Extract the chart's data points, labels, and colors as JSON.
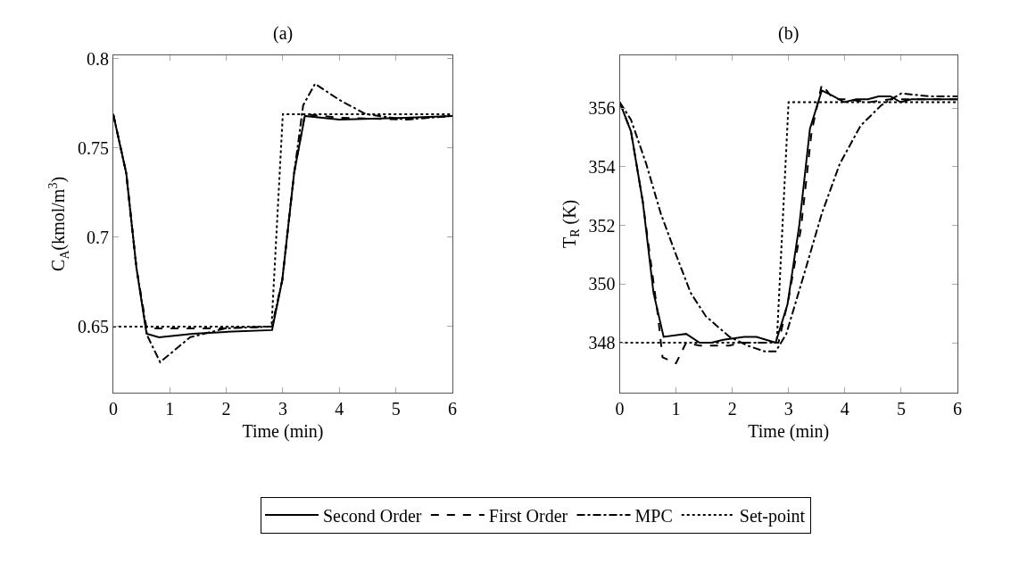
{
  "chart_data": [
    {
      "type": "line",
      "title": "(a)",
      "xlabel": "Time (min)",
      "ylabel": "C$_{A}$(kmol/m$^{3}$)",
      "xlim": [
        0,
        6
      ],
      "xticks": [
        0,
        1,
        2,
        3,
        4,
        5,
        6
      ],
      "ylim": [
        0.613,
        0.802
      ],
      "yticks": [
        0.65,
        0.7,
        0.75,
        0.8
      ],
      "grid": false,
      "legend": "bottom",
      "marker": "none",
      "series": [
        {
          "name": "Second Order",
          "color": "#000000",
          "line_style": "solid",
          "x": [
            0,
            0.23,
            0.41,
            0.59,
            0.81,
            1.41,
            1.99,
            2.81,
            2.99,
            3.2,
            3.39,
            4.0,
            5.16,
            6
          ],
          "values": [
            0.769,
            0.736,
            0.683,
            0.646,
            0.644,
            0.646,
            0.647,
            0.648,
            0.676,
            0.736,
            0.768,
            0.766,
            0.767,
            0.768
          ]
        },
        {
          "name": "First Order",
          "color": "#000000",
          "line_style": "dashed",
          "x": [
            0,
            0.23,
            0.41,
            0.59,
            1.15,
            1.9,
            2.81,
            2.99,
            3.2,
            3.39,
            4.0,
            5.16,
            6
          ],
          "values": [
            0.769,
            0.736,
            0.683,
            0.649,
            0.649,
            0.649,
            0.65,
            0.676,
            0.736,
            0.769,
            0.767,
            0.766,
            0.768
          ]
        },
        {
          "name": "MPC",
          "color": "#000000",
          "line_style": "dashdot",
          "x": [
            0,
            0.23,
            0.41,
            0.6,
            0.83,
            1.36,
            1.99,
            2.81,
            2.99,
            3.2,
            3.36,
            3.57,
            4.0,
            4.47,
            5.16,
            6
          ],
          "values": [
            0.769,
            0.736,
            0.683,
            0.645,
            0.63,
            0.644,
            0.649,
            0.65,
            0.676,
            0.736,
            0.774,
            0.786,
            0.777,
            0.769,
            0.766,
            0.768
          ]
        },
        {
          "name": "Set-point",
          "color": "#000000",
          "line_style": "dotted",
          "x": [
            0,
            2.8,
            3.0,
            6
          ],
          "values": [
            0.65,
            0.65,
            0.769,
            0.769
          ]
        }
      ]
    },
    {
      "type": "line",
      "title": "(b)",
      "xlabel": "Time (min)",
      "ylabel": "T$_{R}$ (K)",
      "xlim": [
        0,
        6
      ],
      "xticks": [
        0,
        1,
        2,
        3,
        4,
        5,
        6
      ],
      "ylim": [
        346.3,
        357.8
      ],
      "yticks": [
        348,
        350,
        352,
        354,
        356
      ],
      "grid": false,
      "marker": "none",
      "series": [
        {
          "color": "#000000",
          "line_style": "solid",
          "x": [
            0,
            0.2,
            0.41,
            0.6,
            0.78,
            1.18,
            1.42,
            1.63,
            1.84,
            2.21,
            2.43,
            2.77,
            2.98,
            3.19,
            3.38,
            3.59,
            3.8,
            3.99,
            4.2,
            4.41,
            4.6,
            4.81,
            4.99,
            5.18,
            6
          ],
          "values": [
            356.2,
            355.2,
            352.8,
            349.7,
            348.2,
            348.3,
            348.0,
            348.0,
            348.1,
            348.2,
            348.2,
            348.0,
            349.3,
            352.0,
            355.3,
            356.6,
            356.4,
            356.2,
            356.3,
            356.3,
            356.4,
            356.4,
            356.2,
            356.3,
            356.3
          ]
        },
        {
          "color": "#000000",
          "line_style": "dashed",
          "x": [
            0,
            0.2,
            0.41,
            0.68,
            0.76,
            1.0,
            1.18,
            1.42,
            1.63,
            1.95,
            2.16,
            2.53,
            2.82,
            3.0,
            3.22,
            3.41,
            3.59,
            3.8,
            4.01,
            4.44,
            4.81,
            5.0,
            6
          ],
          "values": [
            356.2,
            355.2,
            352.8,
            348.9,
            347.5,
            347.3,
            348.0,
            347.9,
            347.9,
            347.9,
            348.0,
            348.0,
            348.0,
            349.5,
            351.9,
            355.2,
            356.8,
            356.3,
            356.3,
            356.2,
            356.3,
            356.3,
            356.3
          ]
        },
        {
          "color": "#000000",
          "line_style": "dashdot",
          "x": [
            0,
            0.2,
            0.47,
            0.73,
            1.0,
            1.26,
            1.53,
            1.95,
            2.27,
            2.58,
            2.77,
            2.96,
            3.27,
            3.59,
            3.91,
            4.28,
            4.65,
            5.0,
            5.5,
            6
          ],
          "values": [
            356.2,
            355.6,
            354.1,
            352.4,
            351.0,
            349.7,
            348.9,
            348.2,
            347.9,
            347.7,
            347.7,
            348.3,
            350.3,
            352.4,
            354.1,
            355.4,
            356.1,
            356.5,
            356.4,
            356.4
          ]
        },
        {
          "color": "#000000",
          "line_style": "dotted",
          "x": [
            0,
            2.79,
            3.0,
            6
          ],
          "values": [
            348.0,
            348.0,
            356.2,
            356.2
          ]
        }
      ]
    }
  ]
}
